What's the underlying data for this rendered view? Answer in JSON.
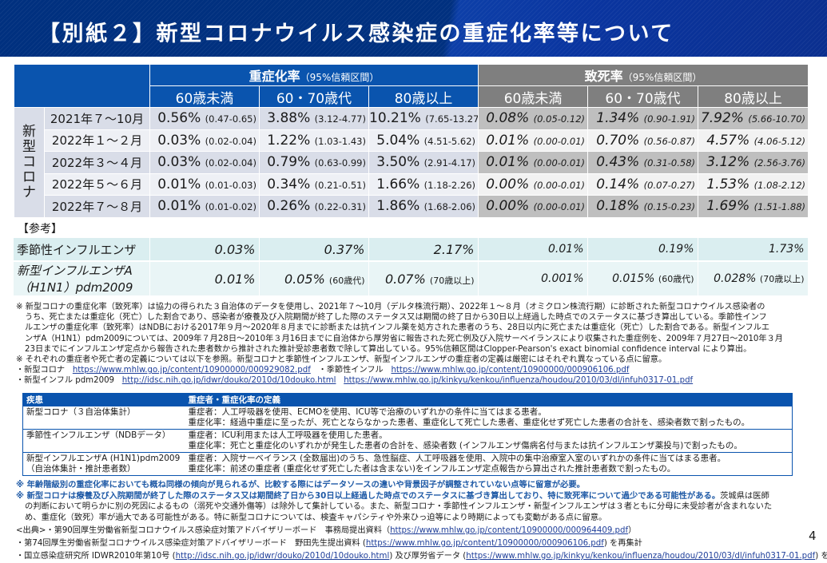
{
  "title": "【別紙２】新型コロナウイルス感染症の重症化率等について",
  "main_table": {
    "group_severe": "重症化率",
    "group_fatal": "致死率",
    "ci_label": "（95%信頼区間）",
    "age_groups": [
      "60歳未満",
      "60・70歳代",
      "80歳以上"
    ],
    "side_label": "新型コロナ",
    "rows": [
      {
        "period": "2021年７～10月",
        "severe": [
          [
            "0.56%",
            "(0.47-0.65)"
          ],
          [
            "3.88%",
            "(3.12-4.77)"
          ],
          [
            "10.21%",
            "(7.65-13.27)"
          ]
        ],
        "fatal": [
          [
            "0.08%",
            "(0.05-0.12)"
          ],
          [
            "1.34%",
            "(0.90-1.91)"
          ],
          [
            "7.92%",
            "(5.66-10.70)"
          ]
        ]
      },
      {
        "period": "2022年１～２月",
        "severe": [
          [
            "0.03%",
            "(0.02-0.04)"
          ],
          [
            "1.22%",
            "(1.03-1.43)"
          ],
          [
            "5.04%",
            "(4.51-5.62)"
          ]
        ],
        "fatal": [
          [
            "0.01%",
            "(0.00-0.01)"
          ],
          [
            "0.70%",
            "(0.56-0.87)"
          ],
          [
            "4.57%",
            "(4.06-5.12)"
          ]
        ]
      },
      {
        "period": "2022年３～４月",
        "severe": [
          [
            "0.03%",
            "(0.02-0.04)"
          ],
          [
            "0.79%",
            "(0.63-0.99)"
          ],
          [
            "3.50%",
            "(2.91-4.17)"
          ]
        ],
        "fatal": [
          [
            "0.01%",
            "(0.00-0.01)"
          ],
          [
            "0.43%",
            "(0.31-0.58)"
          ],
          [
            "3.12%",
            "(2.56-3.76)"
          ]
        ]
      },
      {
        "period": "2022年５～６月",
        "severe": [
          [
            "0.01%",
            "(0.01-0.03)"
          ],
          [
            "0.34%",
            "(0.21-0.51)"
          ],
          [
            "1.66%",
            "(1.18-2.26)"
          ]
        ],
        "fatal": [
          [
            "0.00%",
            "(0.00-0.01)"
          ],
          [
            "0.14%",
            "(0.07-0.27)"
          ],
          [
            "1.53%",
            "(1.08-2.12)"
          ]
        ]
      },
      {
        "period": "2022年７～８月",
        "severe": [
          [
            "0.01%",
            "(0.01-0.02)"
          ],
          [
            "0.26%",
            "(0.22-0.31)"
          ],
          [
            "1.86%",
            "(1.68-2.06)"
          ]
        ],
        "fatal": [
          [
            "0.00%",
            "(0.00-0.01)"
          ],
          [
            "0.18%",
            "(0.15-0.23)"
          ],
          [
            "1.69%",
            "(1.51-1.88)"
          ]
        ]
      }
    ]
  },
  "reference": {
    "label": "【参考】",
    "rows": [
      {
        "name": "季節性インフルエンザ",
        "values": [
          [
            "0.03%",
            ""
          ],
          [
            "0.37%",
            ""
          ],
          [
            "2.17%",
            ""
          ],
          [
            "0.01%",
            ""
          ],
          [
            "0.19%",
            ""
          ],
          [
            "1.73%",
            ""
          ]
        ]
      },
      {
        "name_line1": "新型インフルエンザA",
        "name_line2": "（H1N1）pdm2009",
        "values": [
          [
            "0.01%",
            ""
          ],
          [
            "0.05%",
            "(60歳代)"
          ],
          [
            "0.07%",
            "(70歳以上)"
          ],
          [
            "0.001%",
            ""
          ],
          [
            "0.015%",
            "(60歳代)"
          ],
          [
            "0.028%",
            "(70歳以上)"
          ]
        ]
      }
    ]
  },
  "notes": {
    "n1_l1": "※ 新型コロナの重症化率（致死率）は協力の得られた３自治体のデータを使用し、2021年７～10月（デルタ株流行期）、2022年１～８月（オミクロン株流行期）に診断された新型コロナウイルス感染者の",
    "n1_l2": "うち、死亡または重症化（死亡）した割合であり、感染者が療養及び入院期間が終了した際のステータス又は期間の終了日から30日以上経過した時点でのステータスに基づき算出している。季節性インフ",
    "n1_l3": "ルエンザの重症化率（致死率）はNDBにおける2017年９月～2020年８月までに診断または抗インフル薬を処方された患者のうち、28日以内に死亡または重症化（死亡）した割合である。新型インフルエ",
    "n1_l4": "ンザA（H1N1）pdm2009については、2009年７月28日～2010年３月16日までに自治体から厚労省に報告された死亡例及び入院サーベイランスにより収集された重症例を、2009年７月27日～2010年３月",
    "n1_l5": "23日までにインフルエンザ定点から報告された患者数から推計された推計受診患者数で除して算出している。95%信頼区間はClopper-Pearson's exact binomial confidence interval により算出。",
    "n2": "※ それぞれの重症者や死亡者の定義については以下を参照。新型コロナと季節性インフルエンザ、新型インフルエンザの重症者の定義は厳密にはそれぞれ異なっている点に留意。",
    "l1_label": "・新型コロナ",
    "l1_url": "https://www.mhlw.go.jp/content/10900000/000929082.pdf",
    "l2_label": "・季節性インフル",
    "l2_url": "https://www.mhlw.go.jp/content/10900000/000906106.pdf",
    "l3_label": "・新型インフル pdm2009",
    "l3_url1": "http://idsc.nih.go.jp/idwr/douko/2010d/10douko.html",
    "l3_url2": "https://www.mhlw.go.jp/kinkyu/kenkou/influenza/houdou/2010/03/dl/infuh0317-01.pdf"
  },
  "definitions": {
    "header_disease": "疾患",
    "header_definition": "重症者・重症化率の定義",
    "rows": [
      {
        "disease_l1": "新型コロナ（３自治体集計）",
        "disease_l2": "",
        "def_l1": "重症者：人工呼吸器を使用、ECMOを使用、ICU等で治療のいずれかの条件に当てはまる患者。",
        "def_l2": "重症化率：経過中重症に至ったが、死亡とならなかった患者、重症化して死亡した患者、重症化せず死亡した患者の合計を、感染者数で割ったもの。"
      },
      {
        "disease_l1": "季節性インフルエンザ（NDBデータ）",
        "disease_l2": "",
        "def_l1": "重症者：ICU利用または人工呼吸器を使用した患者。",
        "def_l2": "重症化率：死亡と重症化のいずれかが発生した患者の合計を、感染者数 (インフルエンザ傷病名付与または抗インフルエンザ薬投与)で割ったもの。"
      },
      {
        "disease_l1": "新型インフルエンザA (H1N1)pdm2009",
        "disease_l2": "（自治体集計・推計患者数）",
        "def_l1": "重症者：入院サーベイランス (全数届出)のうち、急性脳症、人工呼吸器を使用、入院中の集中治療室入室のいずれかの条件に当てはまる患者。",
        "def_l2": "重症化率：前述の重症者 (重症化せず死亡した者は含まない)をインフルエンザ定点報告から算出された推計患者数で割ったもの。"
      }
    ]
  },
  "blue_notes": {
    "b1": "※ 年齢階級別の重症化率においても概ね同様の傾向が見られるが、比較する際にはデータソースの違いや背景因子が調整されていない点等に留意が必要。",
    "b2_bold": "※ 新型コロナは療養及び入院期間が終了した際のステータス又は期間終了日から30日以上経過した時点でのステータスに基づき算出しており、特に致死率について過少である可能性がある。",
    "b2_rest": "茨城県は医師",
    "b3": "の判断において明らかに別の死因によるもの（溺死や交通外傷等）は除外して集計している。また、新型コロナ・季節性インフルエンザ・新型インフルエンザは３者ともに分母に未受診者が含まれないた",
    "b4": "め、重症化（致死）率が過大である可能性がある。特に新型コロナについては、検査キャパシティや外来ひっ迫等により時期によっても変動がある点に留意。"
  },
  "sources": {
    "s1_prefix": "<出典>・第90回厚生労働省新型コロナウイルス感染症対策アドバイザリーボード　事務局提出資料（",
    "s1_url": "https://www.mhlw.go.jp/content/10900000/000964409.pdf",
    "s1_suffix": "）",
    "s2_prefix": "・第74回厚生労働省新型コロナウイルス感染症対策アドバイザリーボード　野田先生提出資料 (",
    "s2_url": "https://www.mhlw.go.jp/content/10900000/000906106.pdf",
    "s2_suffix": ") を再集計",
    "s3_prefix": "・国立感染症研究所 IDWR2010年第10号 (",
    "s3_url1": "http://idsc.nih.go.jp/idwr/douko/2010d/10douko.html",
    "s3_mid": ") 及び厚労省データ (",
    "s3_url2": "https://www.mhlw.go.jp/kinkyu/kenkou/influenza/houdou/2010/03/dl/infuh0317-01.pdf",
    "s3_suffix": ") を再集計"
  },
  "page_number": "4"
}
